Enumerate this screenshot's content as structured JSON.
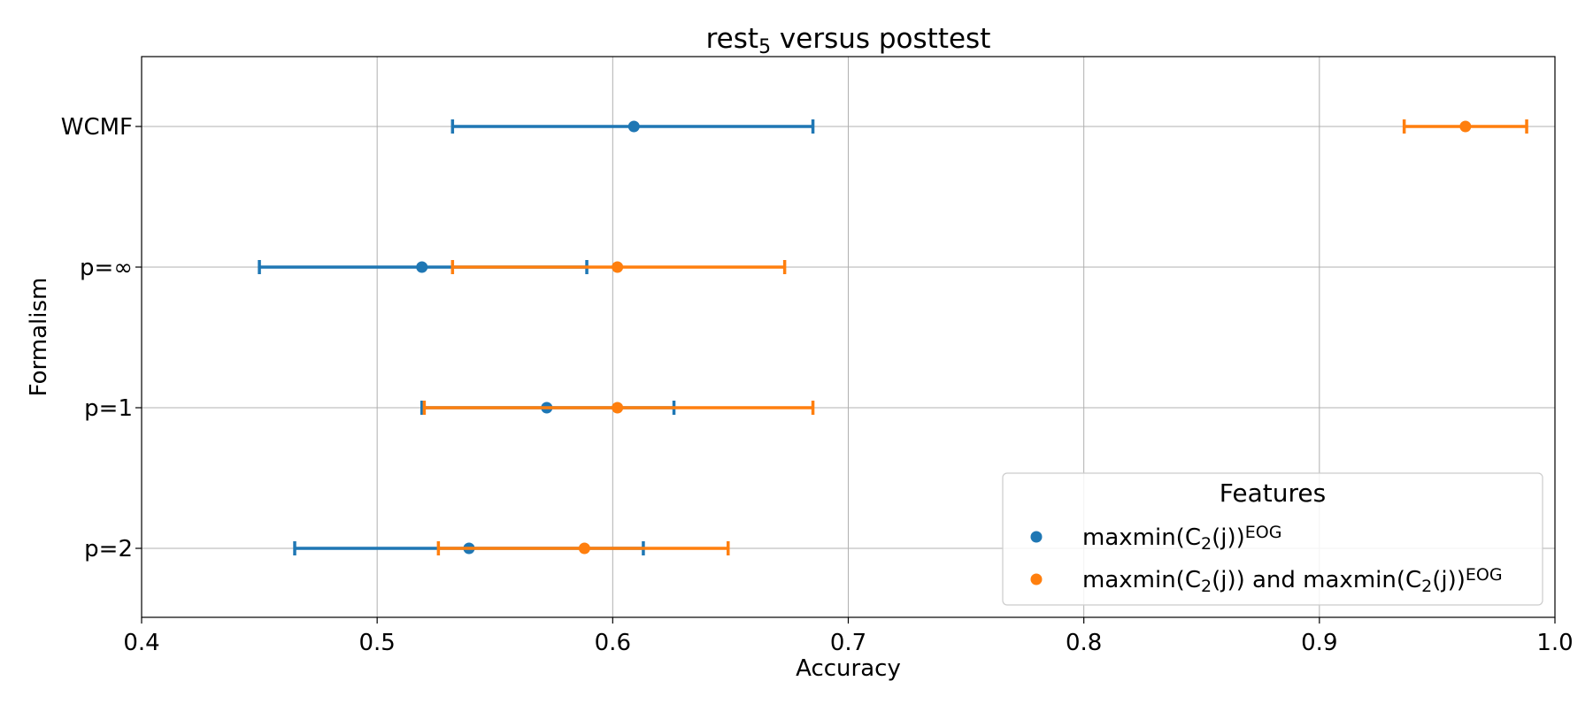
{
  "chart_data": {
    "type": "scatter",
    "title_base": "rest",
    "title_subscript": "5",
    "title_rest": " versus posttest",
    "xlabel": "Accuracy",
    "ylabel": "Formalism",
    "xlim": [
      0.4,
      1.0
    ],
    "xticks": [
      0.4,
      0.5,
      0.6,
      0.7,
      0.8,
      0.9,
      1.0
    ],
    "xtick_labels": [
      "0.4",
      "0.5",
      "0.6",
      "0.7",
      "0.8",
      "0.9",
      "1.0"
    ],
    "categories": [
      "WCMF",
      "p=∞",
      "p=1",
      "p=2"
    ],
    "grid": true,
    "legend": {
      "title": "Features",
      "placement": "lower-right"
    },
    "series": [
      {
        "name": "maxmin(C2(j))EOG",
        "label_parts": [
          {
            "t": "maxmin(C",
            "s": "normal"
          },
          {
            "t": "2",
            "s": "sub"
          },
          {
            "t": "(j))",
            "s": "normal"
          },
          {
            "t": "EOG",
            "s": "sup"
          }
        ],
        "color": "#1f77b4",
        "points": [
          {
            "category": "WCMF",
            "value": 0.609,
            "low": 0.532,
            "high": 0.685
          },
          {
            "category": "p=∞",
            "value": 0.519,
            "low": 0.45,
            "high": 0.589
          },
          {
            "category": "p=1",
            "value": 0.572,
            "low": 0.519,
            "high": 0.626
          },
          {
            "category": "p=2",
            "value": 0.539,
            "low": 0.465,
            "high": 0.613
          }
        ]
      },
      {
        "name": "maxmin(C2(j)) and maxmin(C2(j))EOG",
        "label_parts": [
          {
            "t": "maxmin(C",
            "s": "normal"
          },
          {
            "t": "2",
            "s": "sub"
          },
          {
            "t": "(j)) and maxmin(C",
            "s": "normal"
          },
          {
            "t": "2",
            "s": "sub"
          },
          {
            "t": "(j))",
            "s": "normal"
          },
          {
            "t": "EOG",
            "s": "sup"
          }
        ],
        "color": "#ff7f0e",
        "points": [
          {
            "category": "WCMF",
            "value": 0.962,
            "low": 0.936,
            "high": 0.988
          },
          {
            "category": "p=∞",
            "value": 0.602,
            "low": 0.532,
            "high": 0.673
          },
          {
            "category": "p=1",
            "value": 0.602,
            "low": 0.52,
            "high": 0.685
          },
          {
            "category": "p=2",
            "value": 0.588,
            "low": 0.526,
            "high": 0.649
          }
        ]
      }
    ]
  }
}
